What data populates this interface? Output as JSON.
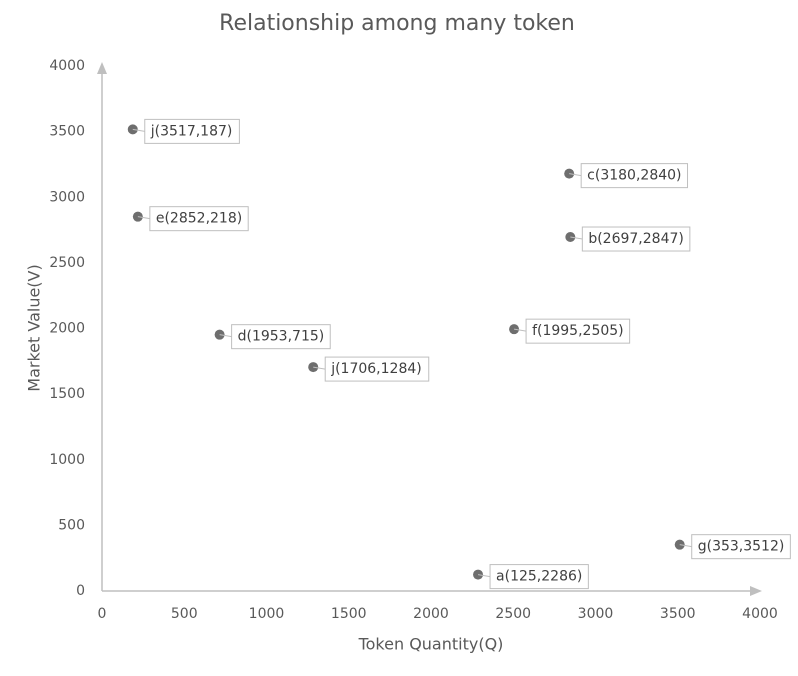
{
  "chart_data": {
    "type": "scatter",
    "title": "Relationship among many token",
    "x_label": "Token Quantity(Q)",
    "y_label": "Market Value(V)",
    "series": [
      {
        "color": "#6e6e6e",
        "x": [
          187,
          218,
          715,
          1284,
          2840,
          2847,
          2505,
          2286,
          3512
        ],
        "values": [
          3517,
          2852,
          1953,
          1706,
          3180,
          2697,
          1995,
          125,
          353
        ],
        "value_labels": [
          "j(3517,187)",
          "e(2852,218)",
          "d(1953,715)",
          "j(1706,1284)",
          "c(3180,2840)",
          "b(2697,2847)",
          "f(1995,2505)",
          "a(125,2286)",
          "g(353,3512)"
        ]
      }
    ],
    "xlim": [
      0,
      4000
    ],
    "xticks": [
      0,
      500,
      1000,
      1500,
      2000,
      2500,
      3000,
      3500,
      4000
    ],
    "ylim": [
      0,
      4000
    ],
    "yticks": [
      0,
      500,
      1000,
      1500,
      2000,
      2500,
      3000,
      3500,
      4000
    ],
    "grid": false
  }
}
